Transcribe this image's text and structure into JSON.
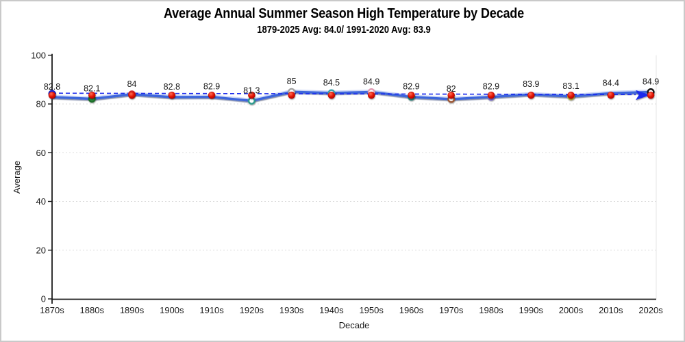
{
  "title": "Average Annual Summer Season High Temperature by Decade",
  "subtitle": "1879-2025 Avg: 84.0/ 1991-2020 Avg: 83.9",
  "chart_data": {
    "type": "line",
    "title": "Average Annual Summer Season High Temperature by Decade",
    "subtitle": "1879-2025 Avg: 84.0/ 1991-2020 Avg: 83.9",
    "xlabel": "Decade",
    "ylabel": "Average",
    "ylim": [
      0,
      100
    ],
    "yticks": [
      0,
      20,
      40,
      60,
      80,
      100
    ],
    "grid": "horizontal-dotted",
    "legend": "none",
    "categories": [
      "1870s",
      "1880s",
      "1890s",
      "1900s",
      "1910s",
      "1920s",
      "1930s",
      "1940s",
      "1950s",
      "1960s",
      "1970s",
      "1980s",
      "1990s",
      "2000s",
      "2010s",
      "2020s"
    ],
    "series": [
      {
        "name": "decade-average",
        "style": "solid-blue-line",
        "values": [
          82.8,
          82.1,
          84,
          82.8,
          82.9,
          81.3,
          85,
          84.5,
          84.9,
          82.9,
          82,
          82.9,
          83.9,
          83.1,
          84.4,
          84.9
        ],
        "labels": [
          "82.8",
          "82.1",
          "84",
          "82.8",
          "82.9",
          "81.3",
          "85",
          "84.5",
          "84.9",
          "82.9",
          "82",
          "82.9",
          "83.9",
          "83.1",
          "84.4",
          "84.9"
        ],
        "marker_styles": [
          null,
          {
            "color": "#2e8f3c",
            "rim": "#1f6e2a",
            "filled": true
          },
          {
            "color": "#d42b2b",
            "filled": false
          },
          null,
          null,
          {
            "color": "#2d9b8f",
            "filled": false
          },
          {
            "color": "#a3a3a3",
            "filled": false
          },
          {
            "color": "#3ba2ac",
            "filled": false
          },
          {
            "color": "#e09db4",
            "filled": false
          },
          {
            "color": "#2e8c85",
            "filled": false
          },
          {
            "color": "#9c5533",
            "filled": false
          },
          {
            "color": "#7d6fd8",
            "filled": false
          },
          null,
          {
            "color": "#c9c04a",
            "filled": false
          },
          null,
          {
            "color": "#141414",
            "filled": false
          }
        ]
      },
      {
        "name": "1879-2025 average line",
        "style": "thin-blue-dashed-with-arrow-and-start-dot",
        "constant_value": 84.0
      },
      {
        "name": "1991-2020 average line",
        "style": "thick-red-dashed-with-red-dot-markers",
        "constant_value": 83.9,
        "marker": "red-dot-at-every-category"
      }
    ],
    "colors": {
      "data_line": "#3d66db",
      "data_line_glow": "#a6b8ef",
      "avg_blue_line": "#1c2bec",
      "avg_red_line": "#de1414",
      "red_dot": "#e01807",
      "grid": "#dbdbdb",
      "axis": "#1a1a1a",
      "text": "#1a1a1a"
    }
  }
}
